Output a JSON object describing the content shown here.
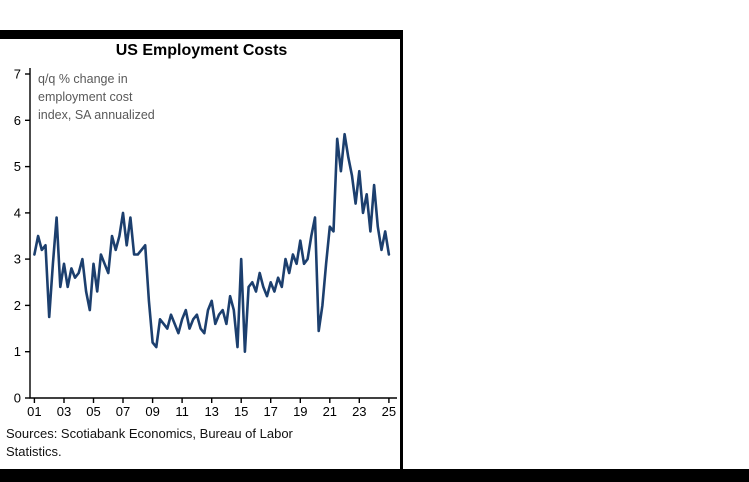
{
  "title": "US Employment Costs",
  "annotation": "q/q % change in\nemployment cost\nindex, SA annualized",
  "source": "Sources: Scotiabank Economics, Bureau of Labor\nStatistics.",
  "colors": {
    "line": "#1c3f6e",
    "axis": "#000000",
    "annotation_text": "#595959",
    "frame": "#000000"
  },
  "chart_data": {
    "type": "line",
    "title": "US Employment Costs",
    "subtitle": "q/q % change in employment cost index, SA annualized",
    "xlabel": "",
    "ylabel": "",
    "ylim": [
      0,
      7
    ],
    "y_ticks": [
      0,
      1,
      2,
      3,
      4,
      5,
      6,
      7
    ],
    "x_tick_labels": [
      "01",
      "03",
      "05",
      "07",
      "09",
      "11",
      "13",
      "15",
      "17",
      "19",
      "21",
      "23",
      "25"
    ],
    "x_tick_values": [
      2001,
      2003,
      2005,
      2007,
      2009,
      2011,
      2013,
      2015,
      2017,
      2019,
      2021,
      2023,
      2025
    ],
    "x_start": 2001.0,
    "x_step": 0.25,
    "grid": false,
    "legend": "none",
    "series": [
      {
        "name": "Employment cost index, q/q % change, SA annualized",
        "values": [
          3.1,
          3.5,
          3.2,
          3.3,
          1.75,
          2.9,
          3.9,
          2.4,
          2.9,
          2.4,
          2.8,
          2.6,
          2.7,
          3.0,
          2.3,
          1.9,
          2.9,
          2.3,
          3.1,
          2.9,
          2.7,
          3.5,
          3.2,
          3.5,
          4.0,
          3.3,
          3.9,
          3.1,
          3.1,
          3.2,
          3.3,
          2.1,
          1.2,
          1.1,
          1.7,
          1.6,
          1.5,
          1.8,
          1.6,
          1.4,
          1.7,
          1.9,
          1.5,
          1.7,
          1.8,
          1.5,
          1.4,
          1.9,
          2.1,
          1.6,
          1.8,
          1.9,
          1.6,
          2.2,
          1.9,
          1.1,
          3.0,
          1.0,
          2.4,
          2.5,
          2.3,
          2.7,
          2.4,
          2.2,
          2.5,
          2.3,
          2.6,
          2.4,
          3.0,
          2.7,
          3.1,
          2.9,
          3.4,
          2.9,
          3.0,
          3.5,
          3.9,
          1.45,
          2.0,
          2.9,
          3.7,
          3.6,
          5.6,
          4.9,
          5.7,
          5.2,
          4.8,
          4.2,
          4.9,
          4.0,
          4.4,
          3.6,
          4.6,
          3.7,
          3.2,
          3.6,
          3.1
        ]
      }
    ]
  }
}
